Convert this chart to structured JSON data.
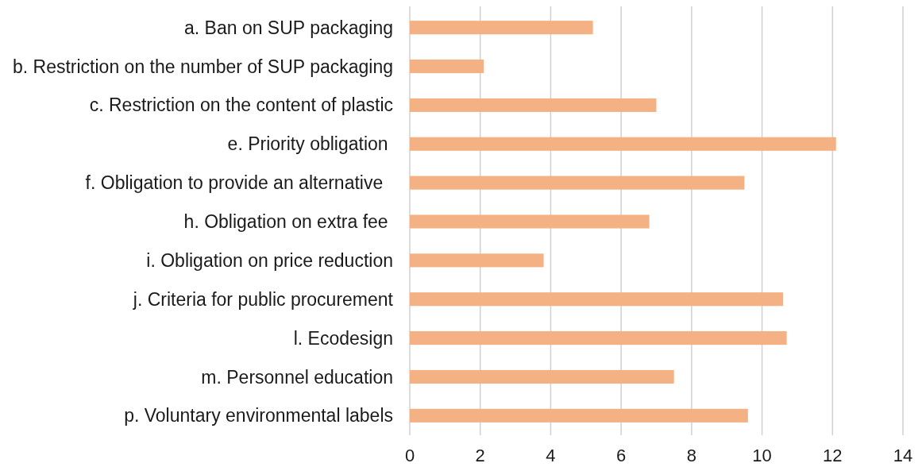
{
  "chart_data": {
    "type": "bar",
    "orientation": "horizontal",
    "categories": [
      "a. Ban on SUP packaging",
      "b. Restriction on the number of SUP packaging",
      "c. Restriction on the content of plastic",
      "e. Priority obligation ",
      "f. Obligation to provide an alternative  ",
      "h. Obligation on extra fee ",
      "i. Obligation on price reduction",
      "j. Criteria for public procurement",
      "l. Ecodesign",
      "m. Personnel education",
      "p. Voluntary environmental labels"
    ],
    "values": [
      5.2,
      2.1,
      7.0,
      12.1,
      9.5,
      6.8,
      3.8,
      10.6,
      10.7,
      7.5,
      9.6
    ],
    "color": "#f4b183",
    "xlim": [
      0,
      14
    ],
    "xticks": [
      0,
      2,
      4,
      6,
      8,
      10,
      12,
      14
    ],
    "grid": "x"
  }
}
